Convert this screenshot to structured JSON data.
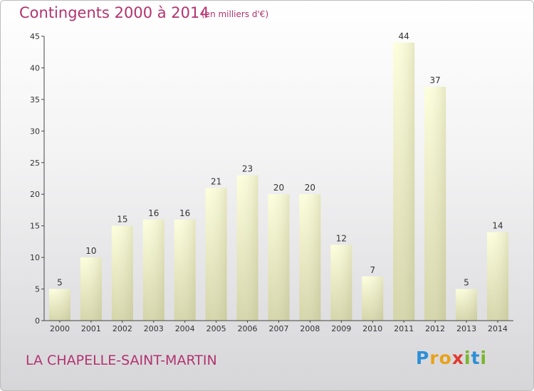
{
  "header": {
    "title": "Contingents 2000 à 2014",
    "subtitle": "(en milliers d'€)"
  },
  "footer": {
    "commune": "LA CHAPELLE-SAINT-MARTIN",
    "logo_letters": [
      "P",
      "r",
      "o",
      "x",
      "i",
      "t",
      "i"
    ]
  },
  "colors": {
    "title": "#b2336f",
    "bar_top": "#fdfedb",
    "bar_bottom": "#d4d4a8",
    "axis": "#444444"
  },
  "chart_data": {
    "type": "bar",
    "title": "Contingents 2000 à 2014",
    "subtitle": "(en milliers d'€)",
    "categories": [
      "2000",
      "2001",
      "2002",
      "2003",
      "2004",
      "2005",
      "2006",
      "2007",
      "2008",
      "2009",
      "2010",
      "2011",
      "2012",
      "2013",
      "2014"
    ],
    "values": [
      5,
      10,
      15,
      16,
      16,
      21,
      23,
      20,
      20,
      12,
      7,
      44,
      37,
      5,
      14
    ],
    "ylim": [
      0,
      45
    ],
    "yticks": [
      0,
      5,
      10,
      15,
      20,
      25,
      30,
      35,
      40,
      45
    ],
    "grid": false,
    "data_labels": true
  }
}
